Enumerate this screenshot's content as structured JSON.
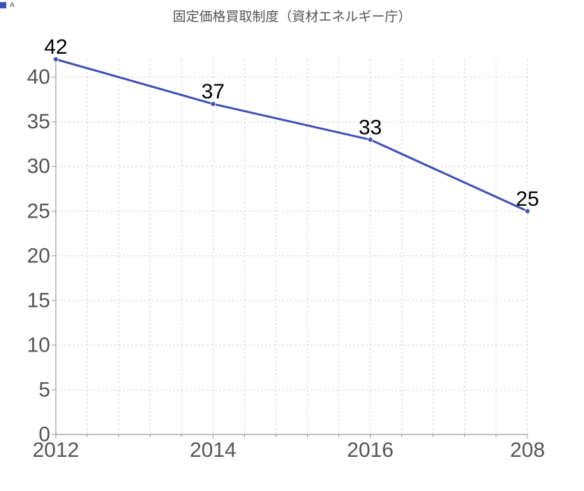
{
  "chart_data": {
    "type": "line",
    "title": "固定価格買取制度（資材エネルギー庁）",
    "xlabel": "",
    "ylabel": "",
    "categories": [
      "2012",
      "2014",
      "2016",
      "208"
    ],
    "series": [
      {
        "name": "A",
        "color": "#3f51b5",
        "values": [
          42,
          37,
          33,
          25
        ]
      }
    ],
    "ylim": [
      0,
      42
    ],
    "y_ticks": [
      0,
      5,
      10,
      15,
      20,
      25,
      30,
      35,
      40
    ],
    "grid": true,
    "legend_position": "top-left",
    "data_labels": true
  }
}
